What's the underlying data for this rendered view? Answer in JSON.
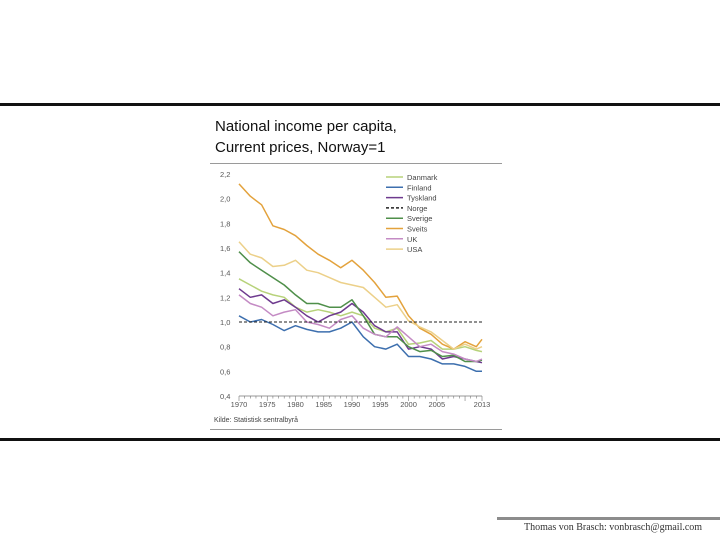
{
  "title_line1": "National income per capita,",
  "title_line2": "Current prices, Norway=1",
  "footer": "Thomas von Brasch: vonbrasch@gmail.com",
  "chart_data": {
    "type": "line",
    "title": "National income per capita, Current prices, Norway=1",
    "source": "Kilde: Statistisk sentralbyrå",
    "xlim": [
      1970,
      2013
    ],
    "ylim": [
      0.4,
      2.2
    ],
    "xticks": [
      1970,
      1975,
      1980,
      1985,
      1990,
      1995,
      2000,
      2005,
      2013
    ],
    "yticks": [
      0.4,
      0.6,
      0.8,
      1.0,
      1.2,
      1.4,
      1.6,
      1.8,
      2.0,
      2.2
    ],
    "ytick_labels": [
      "0,4",
      "0,6",
      "0,8",
      "1,0",
      "1,2",
      "1,4",
      "1,6",
      "1,8",
      "2,0",
      "2,2"
    ],
    "legend_position": "top-right",
    "x": [
      1970,
      1972,
      1974,
      1976,
      1978,
      1980,
      1982,
      1984,
      1986,
      1988,
      1990,
      1992,
      1994,
      1996,
      1998,
      2000,
      2002,
      2004,
      2006,
      2008,
      2010,
      2012,
      2013
    ],
    "series": [
      {
        "name": "Danmark",
        "color": "#b7d27a",
        "dashed": false,
        "values": [
          1.35,
          1.3,
          1.25,
          1.22,
          1.2,
          1.12,
          1.08,
          1.1,
          1.08,
          1.05,
          1.08,
          1.05,
          0.95,
          0.92,
          0.95,
          0.82,
          0.83,
          0.85,
          0.78,
          0.78,
          0.8,
          0.77,
          0.76
        ]
      },
      {
        "name": "Finland",
        "color": "#3d6fae",
        "dashed": false,
        "values": [
          1.05,
          1.0,
          1.02,
          0.98,
          0.93,
          0.97,
          0.94,
          0.92,
          0.92,
          0.95,
          1.0,
          0.88,
          0.8,
          0.78,
          0.82,
          0.72,
          0.72,
          0.7,
          0.66,
          0.66,
          0.64,
          0.6,
          0.6
        ]
      },
      {
        "name": "Tyskland",
        "color": "#6e3a8e",
        "dashed": false,
        "values": [
          1.27,
          1.2,
          1.22,
          1.15,
          1.18,
          1.12,
          1.05,
          1.0,
          1.05,
          1.08,
          1.15,
          1.08,
          0.97,
          0.92,
          0.92,
          0.78,
          0.8,
          0.78,
          0.7,
          0.72,
          0.7,
          0.68,
          0.67
        ]
      },
      {
        "name": "Norge",
        "color": "#222222",
        "dashed": true,
        "values": [
          1,
          1,
          1,
          1,
          1,
          1,
          1,
          1,
          1,
          1,
          1,
          1,
          1,
          1,
          1,
          1,
          1,
          1,
          1,
          1,
          1,
          1,
          1
        ]
      },
      {
        "name": "Sverige",
        "color": "#4f8f4a",
        "dashed": false,
        "values": [
          1.57,
          1.48,
          1.42,
          1.36,
          1.3,
          1.22,
          1.15,
          1.15,
          1.12,
          1.12,
          1.18,
          1.05,
          0.9,
          0.88,
          0.88,
          0.8,
          0.76,
          0.77,
          0.72,
          0.73,
          0.68,
          0.68,
          0.69
        ]
      },
      {
        "name": "Sveits",
        "color": "#e3a23c",
        "dashed": false,
        "values": [
          2.12,
          2.02,
          1.95,
          1.78,
          1.75,
          1.7,
          1.62,
          1.55,
          1.5,
          1.44,
          1.5,
          1.42,
          1.32,
          1.2,
          1.21,
          1.05,
          0.95,
          0.9,
          0.82,
          0.78,
          0.84,
          0.8,
          0.86
        ]
      },
      {
        "name": "UK",
        "color": "#c48bc4",
        "dashed": false,
        "values": [
          1.22,
          1.15,
          1.12,
          1.05,
          1.08,
          1.1,
          1.0,
          0.98,
          0.95,
          1.02,
          1.05,
          0.95,
          0.9,
          0.88,
          0.96,
          0.88,
          0.8,
          0.82,
          0.76,
          0.74,
          0.7,
          0.68,
          0.7
        ]
      },
      {
        "name": "USA",
        "color": "#ecd089",
        "dashed": false,
        "values": [
          1.65,
          1.55,
          1.52,
          1.45,
          1.46,
          1.5,
          1.42,
          1.4,
          1.36,
          1.32,
          1.3,
          1.28,
          1.2,
          1.12,
          1.14,
          1.01,
          0.96,
          0.92,
          0.85,
          0.78,
          0.82,
          0.78,
          0.8
        ]
      }
    ]
  }
}
